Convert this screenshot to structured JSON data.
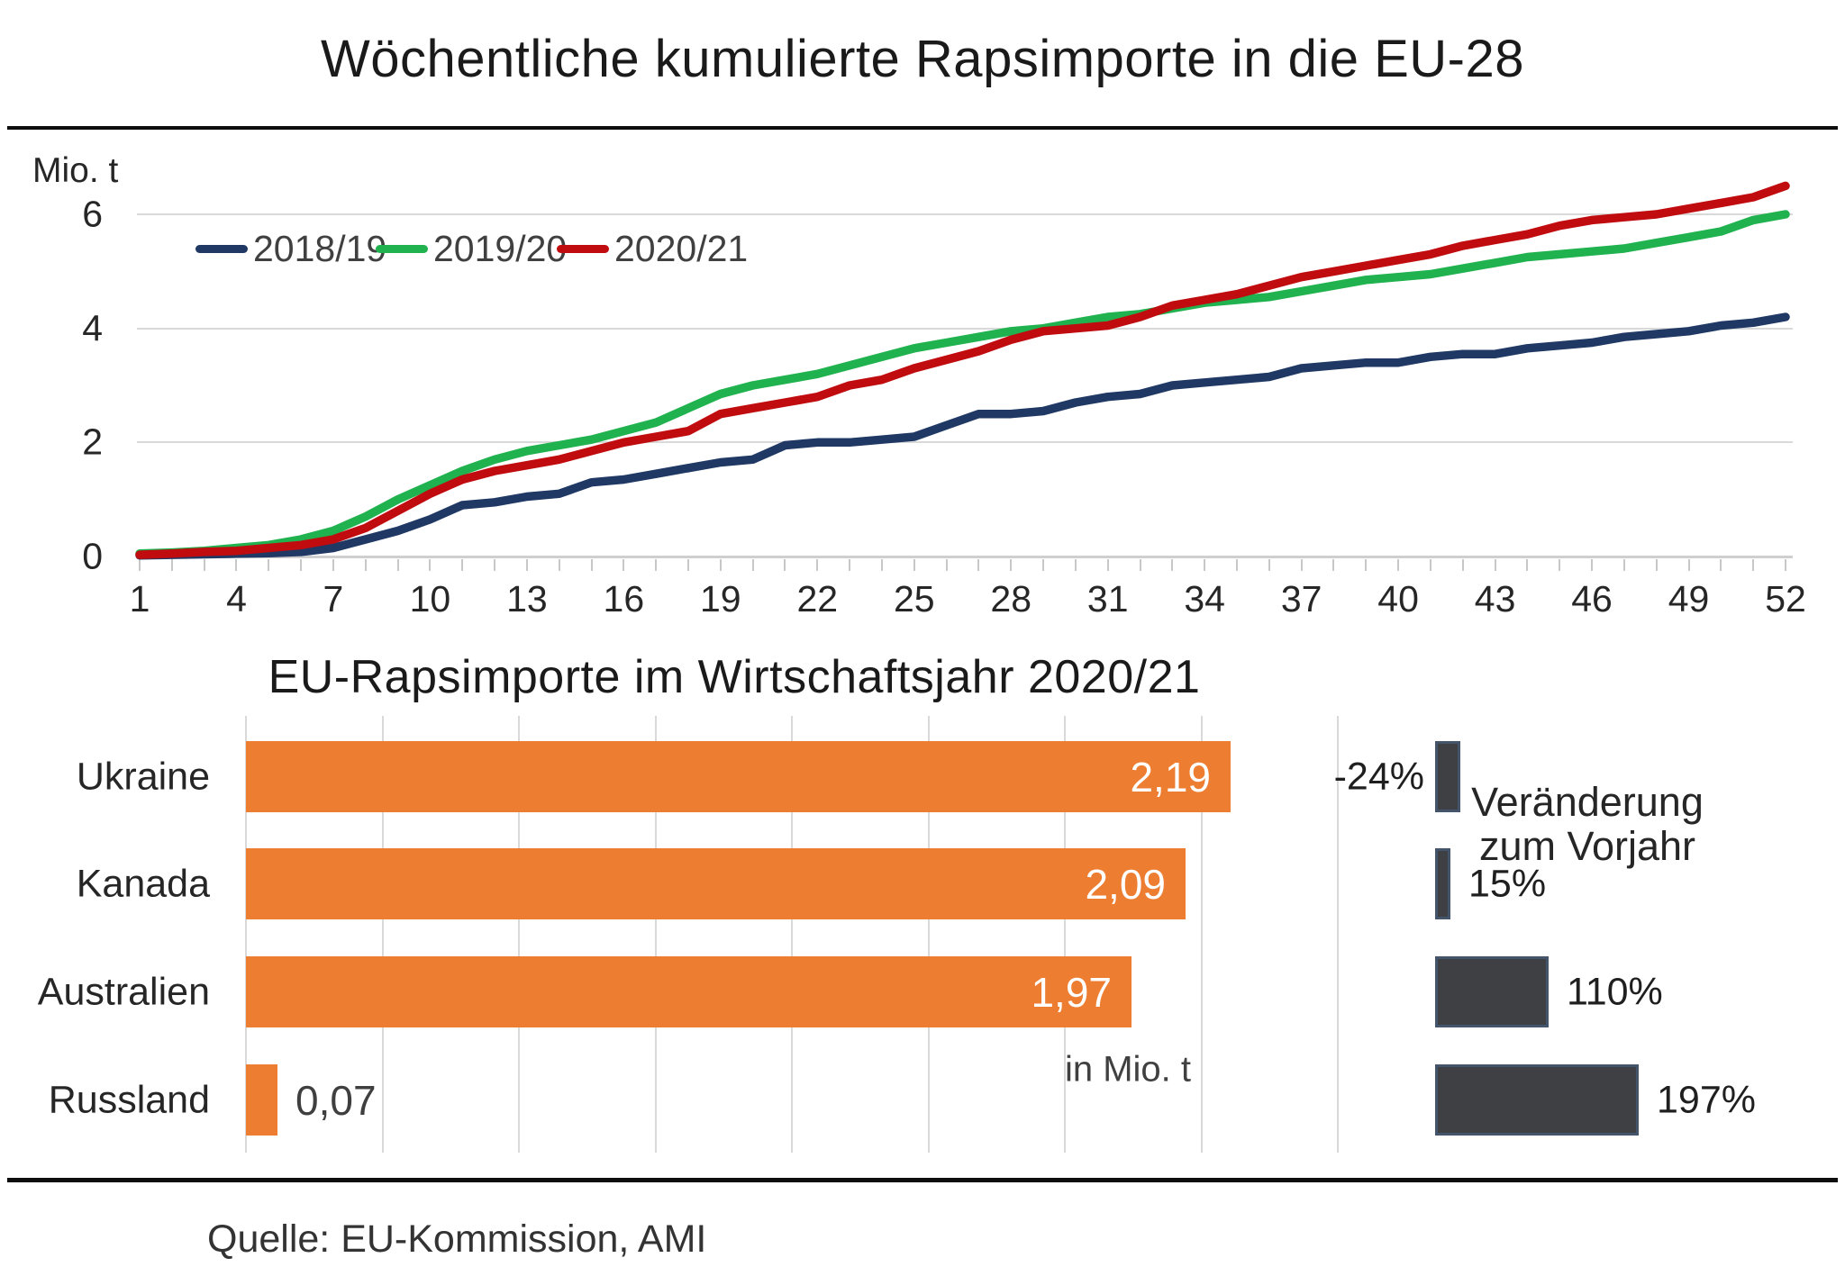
{
  "header": {
    "title": "Wöchentliche kumulierte Rapsimporte in die EU-28"
  },
  "footer": {
    "source": "Quelle: EU-Kommission, AMI"
  },
  "colors": {
    "series_2018_19": "#1f3864",
    "series_2019_20": "#20b24e",
    "series_2020_21": "#c00b0f",
    "import_bar": "#ed7d31",
    "change_bar_fill": "#3e4043",
    "change_bar_border": "#44546a",
    "gridline": "#d9d9d9",
    "rule": "#0d0d0d"
  },
  "chart_data": [
    {
      "type": "line",
      "title": "Wöchentliche kumulierte Rapsimporte in die EU-28",
      "ylabel": "Mio. t",
      "xlabel": "",
      "x_range": [
        1,
        52
      ],
      "xticks": [
        1,
        4,
        7,
        10,
        13,
        16,
        19,
        22,
        25,
        28,
        31,
        34,
        37,
        40,
        43,
        46,
        49,
        52
      ],
      "ylim": [
        0,
        6
      ],
      "yticks": [
        0,
        2,
        4,
        6
      ],
      "grid": "horizontal",
      "legend_position": "top-inside",
      "series": [
        {
          "name": "2018/19",
          "color": "#1f3864",
          "values": [
            0.02,
            0.03,
            0.04,
            0.05,
            0.06,
            0.08,
            0.15,
            0.3,
            0.45,
            0.65,
            0.9,
            0.95,
            1.05,
            1.1,
            1.3,
            1.35,
            1.45,
            1.55,
            1.65,
            1.7,
            1.95,
            2.0,
            2.0,
            2.05,
            2.1,
            2.3,
            2.5,
            2.5,
            2.55,
            2.7,
            2.8,
            2.85,
            3.0,
            3.05,
            3.1,
            3.15,
            3.3,
            3.35,
            3.4,
            3.4,
            3.5,
            3.55,
            3.55,
            3.65,
            3.7,
            3.75,
            3.85,
            3.9,
            3.95,
            4.05,
            4.1,
            4.2
          ]
        },
        {
          "name": "2019/20",
          "color": "#20b24e",
          "values": [
            0.05,
            0.07,
            0.1,
            0.15,
            0.2,
            0.3,
            0.45,
            0.7,
            1.0,
            1.25,
            1.5,
            1.7,
            1.85,
            1.95,
            2.05,
            2.2,
            2.35,
            2.6,
            2.85,
            3.0,
            3.1,
            3.2,
            3.35,
            3.5,
            3.65,
            3.75,
            3.85,
            3.95,
            4.0,
            4.1,
            4.2,
            4.25,
            4.35,
            4.45,
            4.5,
            4.55,
            4.65,
            4.75,
            4.85,
            4.9,
            4.95,
            5.05,
            5.15,
            5.25,
            5.3,
            5.35,
            5.4,
            5.5,
            5.6,
            5.7,
            5.9,
            6.0
          ]
        },
        {
          "name": "2020/21",
          "color": "#c00b0f",
          "values": [
            0.03,
            0.05,
            0.08,
            0.1,
            0.15,
            0.2,
            0.3,
            0.5,
            0.8,
            1.1,
            1.35,
            1.5,
            1.6,
            1.7,
            1.85,
            2.0,
            2.1,
            2.2,
            2.5,
            2.6,
            2.7,
            2.8,
            3.0,
            3.1,
            3.3,
            3.45,
            3.6,
            3.8,
            3.95,
            4.0,
            4.05,
            4.2,
            4.4,
            4.5,
            4.6,
            4.75,
            4.9,
            5.0,
            5.1,
            5.2,
            5.3,
            5.45,
            5.55,
            5.65,
            5.8,
            5.9,
            5.95,
            6.0,
            6.1,
            6.2,
            6.3,
            6.5
          ]
        }
      ]
    },
    {
      "type": "bar",
      "orientation": "horizontal",
      "title": "EU-Rapsimporte im Wirtschaftsjahr 2020/21",
      "categories": [
        "Ukraine",
        "Kanada",
        "Australien",
        "Russland"
      ],
      "values": [
        2.19,
        2.09,
        1.97,
        0.07
      ],
      "value_labels": [
        "2,19",
        "2,09",
        "1,97",
        "0,07"
      ],
      "unit_annotation": "in Mio. t",
      "xlim": [
        0,
        2.43
      ],
      "grid": "vertical",
      "bar_color": "#ed7d31",
      "change": {
        "caption_line1": "Veränderung",
        "caption_line2": "zum Vorjahr",
        "values": [
          -24,
          15,
          110,
          197
        ],
        "labels": [
          "-24%",
          "15%",
          "110%",
          "197%"
        ],
        "bar_color": "#3e4043",
        "bar_border": "#44546a"
      }
    }
  ]
}
